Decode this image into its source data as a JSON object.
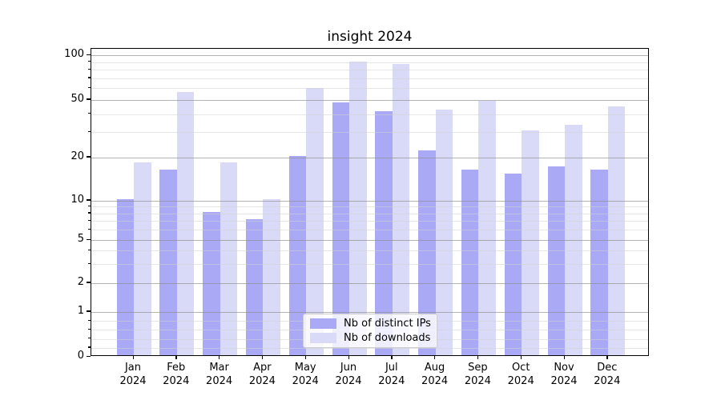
{
  "title": "insight 2024",
  "chart_data": {
    "type": "bar",
    "title": "insight 2024",
    "xlabel": "",
    "ylabel": "",
    "categories": [
      "Jan",
      "Feb",
      "Mar",
      "Apr",
      "May",
      "Jun",
      "Jul",
      "Aug",
      "Sep",
      "Oct",
      "Nov",
      "Dec"
    ],
    "category_year": "2024",
    "series": [
      {
        "name": "Nb of distinct IPs",
        "color": "#a9a9f6",
        "values": [
          10,
          16,
          8,
          7,
          20,
          47,
          41,
          22,
          16,
          15,
          17,
          16
        ]
      },
      {
        "name": "Nb of downloads",
        "color": "#d9d9f8",
        "values": [
          18,
          55,
          18,
          10,
          59,
          88,
          85,
          42,
          48,
          30,
          33,
          44
        ]
      }
    ],
    "yscale": "symlog",
    "yticks": [
      0,
      1,
      2,
      5,
      10,
      20,
      50,
      100
    ],
    "yticks_minor": [
      0.2,
      0.4,
      0.6,
      0.8,
      3,
      4,
      6,
      7,
      8,
      9,
      30,
      40,
      60,
      70,
      80,
      90
    ],
    "ylim": [
      0,
      110
    ],
    "grid": true,
    "legend_position": "lower center"
  },
  "legend": {
    "items": [
      {
        "label": "Nb of distinct IPs",
        "color": "#a9a9f6"
      },
      {
        "label": "Nb of downloads",
        "color": "#d9d9f8"
      }
    ]
  },
  "colors": {
    "series_ips": "#a9a9f6",
    "series_downloads": "#d9d9f8",
    "grid_major": "#b0b0b0",
    "grid_minor": "#e4e4e4",
    "spine": "#000000",
    "background": "#ffffff"
  }
}
